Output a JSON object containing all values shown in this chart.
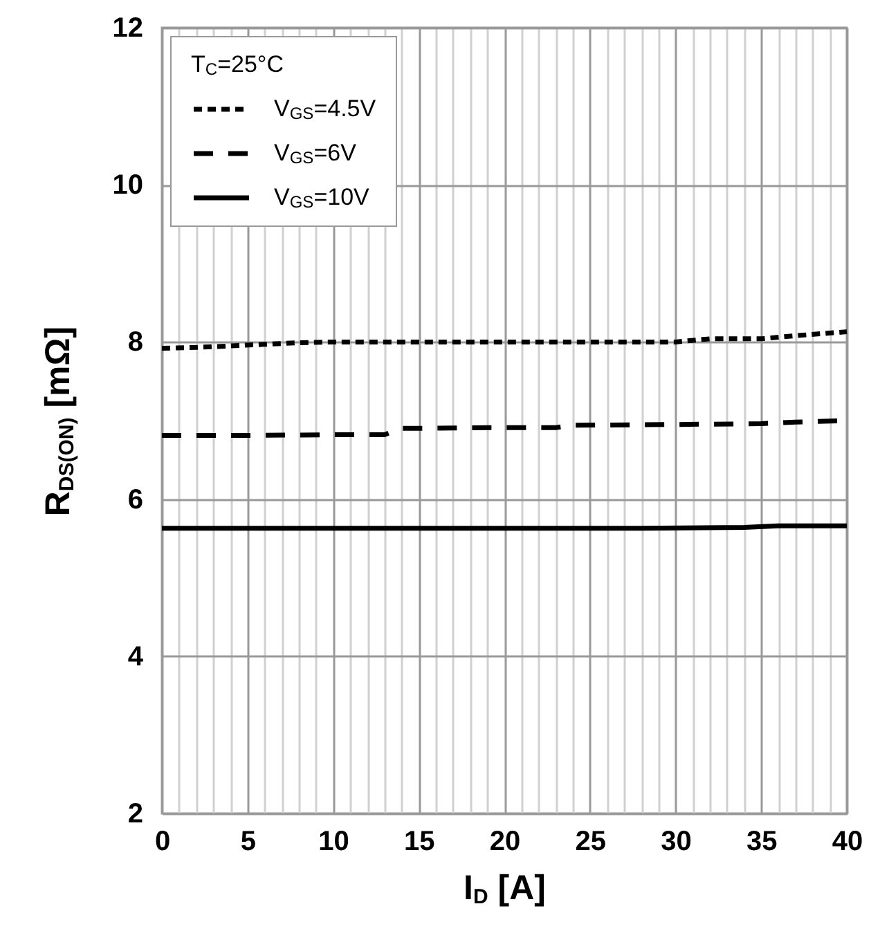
{
  "chart_data": {
    "type": "line",
    "xlabel": "I$_{D}$ [A]",
    "ylabel": "R$_{DS(ON)}$ [mΩ]",
    "legend_title": "T$_{C}$=25°C",
    "xlim": [
      0,
      40
    ],
    "xticks": [
      0,
      5,
      10,
      15,
      20,
      25,
      30,
      35,
      40
    ],
    "ylim": [
      2,
      12
    ],
    "yticks": [
      2,
      4,
      6,
      8,
      10,
      12
    ],
    "grid": true,
    "legend": "top left",
    "marker": "none",
    "series": [
      {
        "name": "V$_{GS}$=4.5V",
        "color": "#000000",
        "line_style": "dotted",
        "x": [
          0,
          2,
          4,
          6,
          8,
          10,
          15,
          20,
          25,
          30,
          32,
          35,
          37,
          40
        ],
        "values": [
          7.92,
          7.93,
          7.95,
          7.97,
          7.99,
          8.0,
          8.0,
          8.0,
          8.0,
          8.0,
          8.04,
          8.04,
          8.08,
          8.13
        ]
      },
      {
        "name": "V$_{GS}$=6V",
        "color": "#000000",
        "line_style": "dashed",
        "x": [
          0,
          5,
          10,
          13,
          14,
          20,
          23,
          24,
          30,
          35,
          37,
          40
        ],
        "values": [
          6.81,
          6.81,
          6.82,
          6.82,
          6.9,
          6.91,
          6.91,
          6.94,
          6.95,
          6.96,
          6.98,
          7.0
        ]
      },
      {
        "name": "V$_{GS}$=10V",
        "color": "#000000",
        "line_style": "solid",
        "x": [
          0,
          28,
          34,
          36,
          40
        ],
        "values": [
          5.63,
          5.63,
          5.64,
          5.66,
          5.66
        ]
      }
    ]
  }
}
